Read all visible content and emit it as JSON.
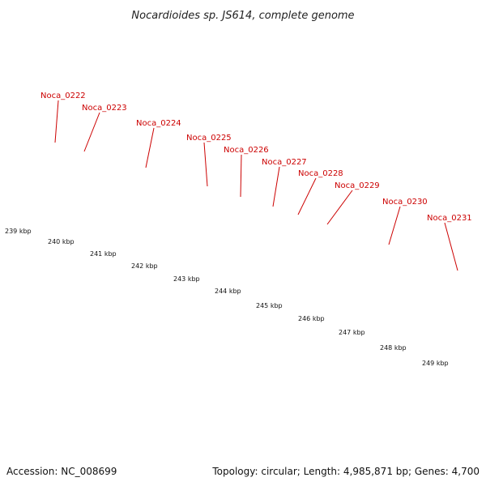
{
  "title": "Nocardioides sp. JS614, complete genome",
  "footer": {
    "accession": "Accession: NC_008699",
    "info": "Topology: circular; Length: 4,985,871 bp; Genes: 4,700"
  },
  "colors": {
    "gene": "#ee0000",
    "cds_cyan": "#00e5ee",
    "grey_feature": "#bbbbbb",
    "orange_feature": "#ff8c00",
    "olive_feature": "#bdb76b",
    "dark_feature": "#666666",
    "backbone": "#888888",
    "tick": "#228b22",
    "label": "#cc0000"
  },
  "gene_labels": [
    "Noca_0222",
    "Noca_0223",
    "Noca_0224",
    "Noca_0225",
    "Noca_0226",
    "Noca_0227",
    "Noca_0228",
    "Noca_0229",
    "Noca_0230",
    "Noca_0231"
  ],
  "kbp_labels": [
    "239 kbp",
    "240 kbp",
    "241 kbp",
    "242 kbp",
    "243 kbp",
    "244 kbp",
    "245 kbp",
    "246 kbp",
    "247 kbp",
    "248 kbp",
    "249 kbp"
  ]
}
